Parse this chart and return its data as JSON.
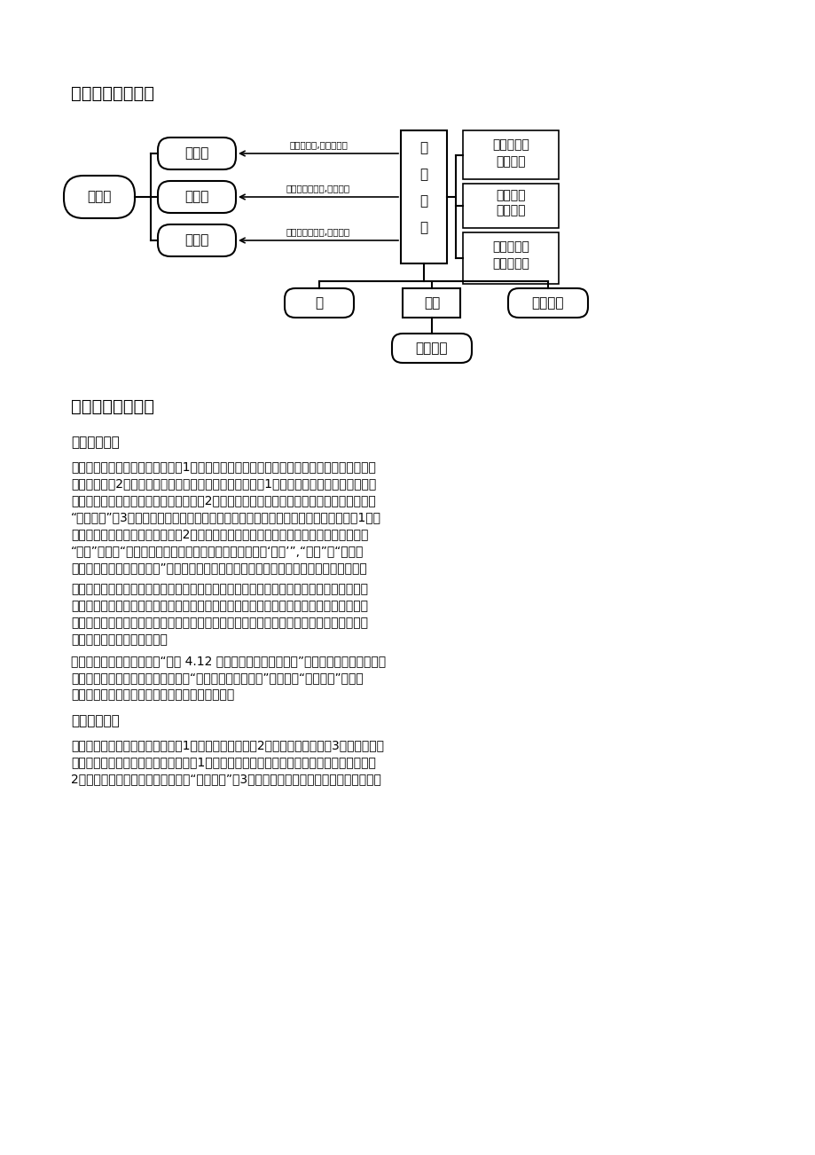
{
  "title_section4": "四、单元学问框架",
  "title_section5": "五、重点难点解析",
  "subtitle_key": "《重点解析》",
  "subtitle_hard": "《难点解析》",
  "bg_color": "#ffffff",
  "diagram_lw": 1.5,
  "para1_lines": [
    "　　本章的学问与技能的重点是：1、物质的宏观特性，包括物质三态特性、物质密度、气压",
    "和热胀冷缩；2、物质的粒子模型。过程与方法的重点是：1、归纳方法；即从个别事实中概",
    "括出一般概念、一般原理和规律的方法；2、黑筱方法；即从宏观现象推断物质的微观结构的",
    "“黑筱方法”。3、模型的方法，包括建立模型与应用模型。情感看法与价值观的重点：1、体",
    "会世界是物质的，物质是运动的；2、感受用模型说明物质特性的意义，让学生从中感受到",
    "“科学”不同于“知其然而无需知其所以然，无需探究缘由的‘常识’”,“科学”是“具有说",
    "明性，必需对现象进行说明”，即对于学生从相识常识向学习科学的过渡具有重要的意义。"
  ],
  "para2_lines": [
    "　　教学过程中，学生应当在充分进行试验、视察现象的基础上，描述或归纳出物质的相应",
    "宏观特性；同时运用黑筱方法推断出物质的微观结构，进行概括、提炼，建立粒子模型，体",
    "会世界是物质的、物质是运动的；通过应用模型说明物质的特性中一些抽象的内容，感受到",
    "用模型说明物质特性的意义。"
  ],
  "para3_lines": [
    "　　这里还需特殊说明的是“活动 4.12 物体的温度与粒子的运动”。因为视察到温度对粒子",
    "运动速度具有影响的现象是学生理解“空气受热后密度减小”以及物体“热胀冷缩”现象的",
    "思维保障，所以这是本章要特殊重视的一个活动。"
  ],
  "para4_lines": [
    "　　本章的学问与技能的难点是：1、物质的粒子模型；2、气体压强的产生；3、物体的浮沉",
    "与密度的关系。过程与方法的难点是：1、通过视察、归纳出事物各自主要特征的归纳方法；",
    "2、从宏观现象推断物质微观结构的“黑筱方法”。3、建立粒子模型并应用粒子模型说明有关"
  ]
}
